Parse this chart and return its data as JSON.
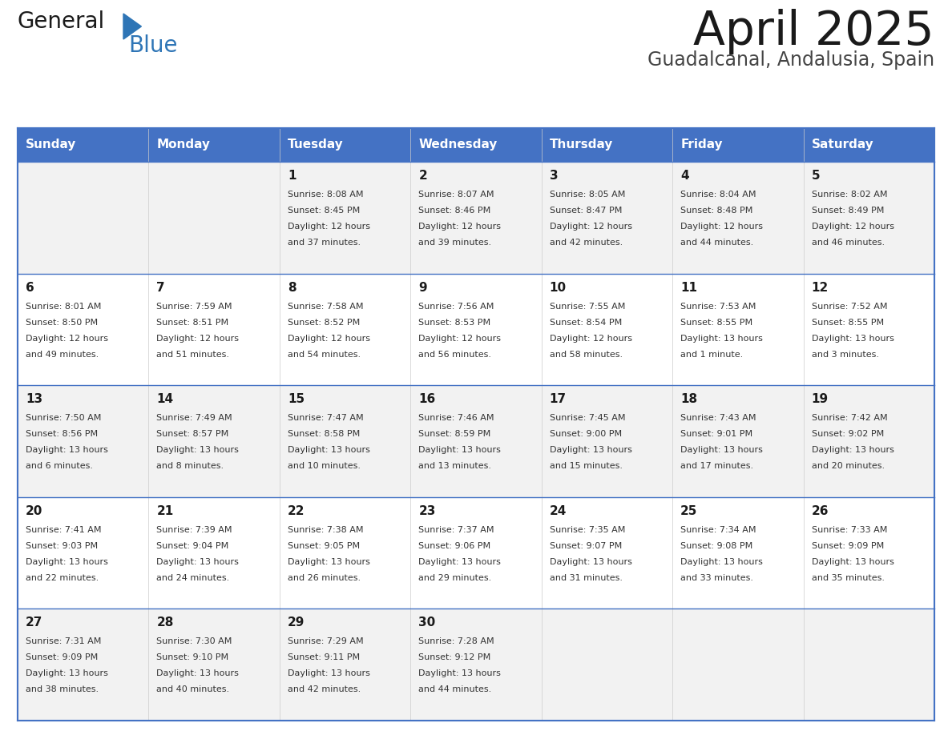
{
  "title": "April 2025",
  "subtitle": "Guadalcanal, Andalusia, Spain",
  "header_bg": "#4472C4",
  "header_text_color": "#FFFFFF",
  "row_bg_even": "#F2F2F2",
  "row_bg_odd": "#FFFFFF",
  "grid_line_color": "#4472C4",
  "day_headers": [
    "Sunday",
    "Monday",
    "Tuesday",
    "Wednesday",
    "Thursday",
    "Friday",
    "Saturday"
  ],
  "weeks": [
    [
      {
        "day": "",
        "sunrise": "",
        "sunset": "",
        "daylight": ""
      },
      {
        "day": "",
        "sunrise": "",
        "sunset": "",
        "daylight": ""
      },
      {
        "day": "1",
        "sunrise": "8:08 AM",
        "sunset": "8:45 PM",
        "daylight": "12 hours\nand 37 minutes."
      },
      {
        "day": "2",
        "sunrise": "8:07 AM",
        "sunset": "8:46 PM",
        "daylight": "12 hours\nand 39 minutes."
      },
      {
        "day": "3",
        "sunrise": "8:05 AM",
        "sunset": "8:47 PM",
        "daylight": "12 hours\nand 42 minutes."
      },
      {
        "day": "4",
        "sunrise": "8:04 AM",
        "sunset": "8:48 PM",
        "daylight": "12 hours\nand 44 minutes."
      },
      {
        "day": "5",
        "sunrise": "8:02 AM",
        "sunset": "8:49 PM",
        "daylight": "12 hours\nand 46 minutes."
      }
    ],
    [
      {
        "day": "6",
        "sunrise": "8:01 AM",
        "sunset": "8:50 PM",
        "daylight": "12 hours\nand 49 minutes."
      },
      {
        "day": "7",
        "sunrise": "7:59 AM",
        "sunset": "8:51 PM",
        "daylight": "12 hours\nand 51 minutes."
      },
      {
        "day": "8",
        "sunrise": "7:58 AM",
        "sunset": "8:52 PM",
        "daylight": "12 hours\nand 54 minutes."
      },
      {
        "day": "9",
        "sunrise": "7:56 AM",
        "sunset": "8:53 PM",
        "daylight": "12 hours\nand 56 minutes."
      },
      {
        "day": "10",
        "sunrise": "7:55 AM",
        "sunset": "8:54 PM",
        "daylight": "12 hours\nand 58 minutes."
      },
      {
        "day": "11",
        "sunrise": "7:53 AM",
        "sunset": "8:55 PM",
        "daylight": "13 hours\nand 1 minute."
      },
      {
        "day": "12",
        "sunrise": "7:52 AM",
        "sunset": "8:55 PM",
        "daylight": "13 hours\nand 3 minutes."
      }
    ],
    [
      {
        "day": "13",
        "sunrise": "7:50 AM",
        "sunset": "8:56 PM",
        "daylight": "13 hours\nand 6 minutes."
      },
      {
        "day": "14",
        "sunrise": "7:49 AM",
        "sunset": "8:57 PM",
        "daylight": "13 hours\nand 8 minutes."
      },
      {
        "day": "15",
        "sunrise": "7:47 AM",
        "sunset": "8:58 PM",
        "daylight": "13 hours\nand 10 minutes."
      },
      {
        "day": "16",
        "sunrise": "7:46 AM",
        "sunset": "8:59 PM",
        "daylight": "13 hours\nand 13 minutes."
      },
      {
        "day": "17",
        "sunrise": "7:45 AM",
        "sunset": "9:00 PM",
        "daylight": "13 hours\nand 15 minutes."
      },
      {
        "day": "18",
        "sunrise": "7:43 AM",
        "sunset": "9:01 PM",
        "daylight": "13 hours\nand 17 minutes."
      },
      {
        "day": "19",
        "sunrise": "7:42 AM",
        "sunset": "9:02 PM",
        "daylight": "13 hours\nand 20 minutes."
      }
    ],
    [
      {
        "day": "20",
        "sunrise": "7:41 AM",
        "sunset": "9:03 PM",
        "daylight": "13 hours\nand 22 minutes."
      },
      {
        "day": "21",
        "sunrise": "7:39 AM",
        "sunset": "9:04 PM",
        "daylight": "13 hours\nand 24 minutes."
      },
      {
        "day": "22",
        "sunrise": "7:38 AM",
        "sunset": "9:05 PM",
        "daylight": "13 hours\nand 26 minutes."
      },
      {
        "day": "23",
        "sunrise": "7:37 AM",
        "sunset": "9:06 PM",
        "daylight": "13 hours\nand 29 minutes."
      },
      {
        "day": "24",
        "sunrise": "7:35 AM",
        "sunset": "9:07 PM",
        "daylight": "13 hours\nand 31 minutes."
      },
      {
        "day": "25",
        "sunrise": "7:34 AM",
        "sunset": "9:08 PM",
        "daylight": "13 hours\nand 33 minutes."
      },
      {
        "day": "26",
        "sunrise": "7:33 AM",
        "sunset": "9:09 PM",
        "daylight": "13 hours\nand 35 minutes."
      }
    ],
    [
      {
        "day": "27",
        "sunrise": "7:31 AM",
        "sunset": "9:09 PM",
        "daylight": "13 hours\nand 38 minutes."
      },
      {
        "day": "28",
        "sunrise": "7:30 AM",
        "sunset": "9:10 PM",
        "daylight": "13 hours\nand 40 minutes."
      },
      {
        "day": "29",
        "sunrise": "7:29 AM",
        "sunset": "9:11 PM",
        "daylight": "13 hours\nand 42 minutes."
      },
      {
        "day": "30",
        "sunrise": "7:28 AM",
        "sunset": "9:12 PM",
        "daylight": "13 hours\nand 44 minutes."
      },
      {
        "day": "",
        "sunrise": "",
        "sunset": "",
        "daylight": ""
      },
      {
        "day": "",
        "sunrise": "",
        "sunset": "",
        "daylight": ""
      },
      {
        "day": "",
        "sunrise": "",
        "sunset": "",
        "daylight": ""
      }
    ]
  ],
  "logo_text1": "General",
  "logo_text2": "Blue",
  "logo_text1_color": "#1a1a1a",
  "logo_text2_color": "#2E75B6",
  "logo_triangle_color": "#2E75B6",
  "title_color": "#1a1a1a",
  "subtitle_color": "#444444",
  "cell_text_color": "#333333",
  "cell_day_color": "#1a1a1a"
}
